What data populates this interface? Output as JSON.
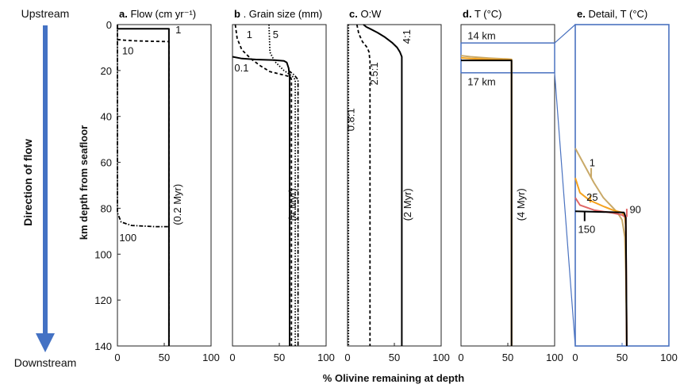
{
  "figure": {
    "upstream_label": "Upstream",
    "downstream_label": "Downstream",
    "direction_label": "Direction of flow",
    "y_axis_label": "km depth from seafloor",
    "x_axis_label": "% Olivine remaining at depth",
    "arrow_color": "#4472c4",
    "detail_box_color": "#4a72c0"
  },
  "chart_data": [
    {
      "type": "line",
      "panel": "a",
      "title_bold": "a.",
      "title": "Flow (cm yr⁻¹)",
      "time_label": "(0.2 Myr)",
      "xlim": [
        0,
        100
      ],
      "ylim": [
        0,
        140
      ],
      "y_inverted": true,
      "x_ticks": [
        "0",
        "50",
        "100"
      ],
      "y_ticks": [
        "0",
        "20",
        "40",
        "60",
        "80",
        "100",
        "120",
        "140"
      ],
      "series": [
        {
          "name": "1",
          "style": "solid",
          "color": "#000000",
          "points": [
            [
              0,
              0.3
            ],
            [
              0,
              1.8
            ],
            [
              55,
              1.8
            ],
            [
              55,
              140
            ]
          ]
        },
        {
          "name": "10",
          "style": "dashed",
          "color": "#000000",
          "points": [
            [
              0,
              6.5
            ],
            [
              8,
              6.8
            ],
            [
              20,
              7.1
            ],
            [
              40,
              7.3
            ],
            [
              55,
              7.4
            ],
            [
              55,
              140
            ]
          ]
        },
        {
          "name": "100",
          "style": "dashdot",
          "color": "#000000",
          "points": [
            [
              0,
              0
            ],
            [
              0,
              82
            ],
            [
              4,
              86
            ],
            [
              15,
              87.5
            ],
            [
              40,
              88
            ],
            [
              55,
              88
            ],
            [
              55,
              140
            ]
          ]
        }
      ],
      "labels": [
        {
          "text": "1",
          "x": 62,
          "y": 2.5
        },
        {
          "text": "10",
          "x": 5,
          "y": 11.5
        },
        {
          "text": "100",
          "x": 2,
          "y": 93
        }
      ]
    },
    {
      "type": "line",
      "panel": "b",
      "title_bold": "b",
      "title": ". Grain size (mm)",
      "time_label": "(4 Myr)",
      "xlim": [
        0,
        100
      ],
      "ylim": [
        0,
        140
      ],
      "y_inverted": true,
      "x_ticks": [
        "0",
        "50",
        "100"
      ],
      "y_ticks": [],
      "series": [
        {
          "name": "0.1",
          "style": "solid",
          "color": "#000000",
          "points": [
            [
              0,
              14
            ],
            [
              10,
              14.8
            ],
            [
              25,
              15.2
            ],
            [
              45,
              15.5
            ],
            [
              55,
              15.8
            ],
            [
              58,
              16.5
            ],
            [
              60,
              19
            ],
            [
              61,
              23
            ],
            [
              61,
              140
            ]
          ]
        },
        {
          "name": "1",
          "style": "dashed",
          "color": "#000000",
          "points": [
            [
              3,
              0
            ],
            [
              5,
              6
            ],
            [
              10,
              11
            ],
            [
              20,
              15
            ],
            [
              30,
              18
            ],
            [
              40,
              20.5
            ],
            [
              55,
              22
            ],
            [
              62,
              22.8
            ],
            [
              63,
              24
            ],
            [
              63,
              140
            ]
          ]
        },
        {
          "name": "5",
          "style": "dotted",
          "color": "#000000",
          "points": [
            [
              39,
              0
            ],
            [
              40,
              12
            ],
            [
              45,
              16
            ],
            [
              55,
              20
            ],
            [
              64,
              22.5
            ],
            [
              67,
              24
            ],
            [
              67,
              140
            ]
          ]
        },
        {
          "name": "",
          "style": "dashdot",
          "color": "#000000",
          "points": [
            [
              60,
              20
            ],
            [
              66,
              22
            ],
            [
              70,
              24
            ],
            [
              70,
              140
            ]
          ]
        }
      ],
      "labels": [
        {
          "text": "1",
          "x": 15,
          "y": 4.5
        },
        {
          "text": "5",
          "x": 43,
          "y": 4.5
        },
        {
          "text": "0.1",
          "x": 2,
          "y": 19
        }
      ]
    },
    {
      "type": "line",
      "panel": "c",
      "title_bold": "c.",
      "title": " O:W",
      "time_label": "(2 Myr)",
      "xlim": [
        0,
        100
      ],
      "ylim": [
        0,
        140
      ],
      "y_inverted": true,
      "x_ticks": [
        "0",
        "50",
        "100"
      ],
      "y_ticks": [],
      "series": [
        {
          "name": "0.8:1",
          "style": "dotted",
          "color": "#000000",
          "points": [
            [
              1,
              0
            ],
            [
              1,
              140
            ]
          ]
        },
        {
          "name": "2.5:1",
          "style": "dashed",
          "color": "#000000",
          "points": [
            [
              10,
              0
            ],
            [
              12,
              4
            ],
            [
              16,
              7.5
            ],
            [
              21,
              10
            ],
            [
              23,
              12
            ],
            [
              24,
              16
            ],
            [
              24,
              140
            ]
          ]
        },
        {
          "name": "4:1",
          "style": "solid",
          "color": "#000000",
          "points": [
            [
              17,
              0
            ],
            [
              20,
              1
            ],
            [
              25,
              2
            ],
            [
              32,
              3.5
            ],
            [
              40,
              5.5
            ],
            [
              48,
              8
            ],
            [
              53,
              10
            ],
            [
              56,
              12
            ],
            [
              58,
              14
            ],
            [
              58,
              140
            ]
          ]
        }
      ],
      "labels": [
        {
          "text": "0.8:1",
          "x": 7,
          "y": 45,
          "rotate": -90
        },
        {
          "text": "2.5:1",
          "x": 32,
          "y": 25,
          "rotate": -90
        },
        {
          "text": "4:1",
          "x": 67,
          "y": 7,
          "rotate": -90
        }
      ]
    },
    {
      "type": "line",
      "panel": "d",
      "title_bold": "d.",
      "title": " T (°C)",
      "time_label": "(4 Myr)",
      "xlim": [
        0,
        100
      ],
      "ylim": [
        0,
        140
      ],
      "y_inverted": true,
      "x_ticks": [
        "0",
        "50",
        "100"
      ],
      "y_ticks": [],
      "series": [
        {
          "name": "",
          "style": "solid",
          "color": "#c9a968",
          "points": [
            [
              0,
              13.5
            ],
            [
              10,
              14
            ],
            [
              30,
              14.6
            ],
            [
              50,
              15
            ],
            [
              54,
              15.1
            ],
            [
              54,
              140
            ]
          ]
        },
        {
          "name": "",
          "style": "solid",
          "color": "#f5a21d",
          "points": [
            [
              0,
              14.5
            ],
            [
              10,
              14.8
            ],
            [
              30,
              15.1
            ],
            [
              50,
              15.3
            ],
            [
              54,
              15.4
            ],
            [
              54,
              140
            ]
          ]
        },
        {
          "name": "",
          "style": "solid",
          "color": "#000000",
          "points": [
            [
              0,
              15.6
            ],
            [
              54,
              15.6
            ],
            [
              54,
              140
            ]
          ]
        }
      ],
      "labels": [
        {
          "text": "14 km",
          "x": 7,
          "y": 5
        },
        {
          "text": "17 km",
          "x": 7,
          "y": 25
        }
      ],
      "zoom_box": {
        "x": [
          0,
          100
        ],
        "y": [
          8,
          21
        ]
      }
    },
    {
      "type": "line",
      "panel": "e",
      "title_bold": "e.",
      "title": " Detail, T (°C)",
      "xlim": [
        0,
        100
      ],
      "ylim": [
        8,
        21
      ],
      "y_inverted": true,
      "x_ticks": [
        "0",
        "50",
        "100"
      ],
      "y_ticks": [],
      "series": [
        {
          "name": "1",
          "style": "solid",
          "color": "#c9a968",
          "points": [
            [
              0,
              13
            ],
            [
              10,
              13.7
            ],
            [
              20,
              14.4
            ],
            [
              30,
              15
            ],
            [
              40,
              15.4
            ],
            [
              45,
              15.6
            ],
            [
              50,
              15.9
            ],
            [
              53,
              16.6
            ],
            [
              54,
              18
            ],
            [
              55,
              21
            ]
          ]
        },
        {
          "name": "25",
          "style": "solid",
          "color": "#f5a21d",
          "points": [
            [
              0,
              14.2
            ],
            [
              5,
              14.8
            ],
            [
              15,
              15.1
            ],
            [
              30,
              15.35
            ],
            [
              40,
              15.5
            ],
            [
              50,
              15.6
            ],
            [
              53,
              15.8
            ],
            [
              54,
              16.2
            ],
            [
              55,
              21
            ]
          ]
        },
        {
          "name": "90",
          "style": "solid",
          "color": "#e06666",
          "points": [
            [
              0,
              15
            ],
            [
              5,
              15.3
            ],
            [
              20,
              15.5
            ],
            [
              40,
              15.62
            ],
            [
              50,
              15.7
            ],
            [
              54,
              15.8
            ],
            [
              55,
              21
            ]
          ]
        },
        {
          "name": "150",
          "style": "solid",
          "color": "#000000",
          "points": [
            [
              0,
              15.55
            ],
            [
              52,
              15.6
            ],
            [
              54,
              15.8
            ],
            [
              55,
              21
            ]
          ]
        }
      ],
      "labels": [
        {
          "text": "1",
          "x": 15,
          "y": 13.6
        },
        {
          "text": "25",
          "x": 12,
          "y": 15.0
        },
        {
          "text": "90",
          "x": 58,
          "y": 15.5
        },
        {
          "text": "150",
          "x": 3,
          "y": 16.3
        }
      ],
      "label_ticks": [
        {
          "color": "#c9a968",
          "x": 17,
          "y1": 14.2,
          "y2": 13.8
        },
        {
          "color": "#f5a21d",
          "x": 16,
          "y1": 15.2,
          "y2": 14.9
        },
        {
          "color": "#e06666",
          "x": 55,
          "y1": 15.78,
          "y2": 15.45
        },
        {
          "color": "#000000",
          "x": 10,
          "y1": 15.58,
          "y2": 15.95
        }
      ]
    }
  ]
}
